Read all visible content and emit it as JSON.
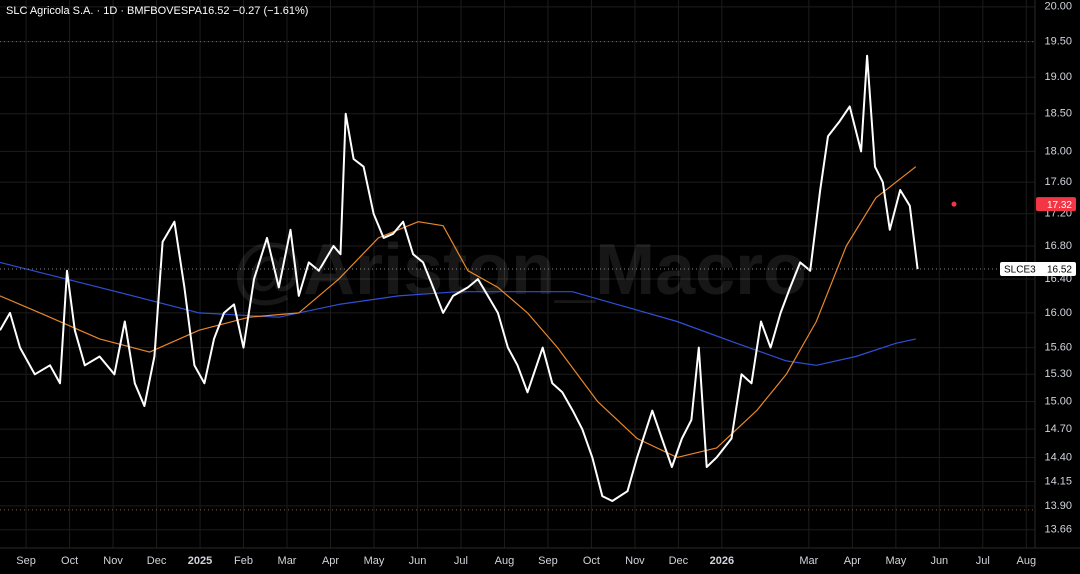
{
  "chart_data": {
    "type": "line",
    "title": "SLC Agricola S.A. · 1D · BMFBOVESPA",
    "quote": "16.52 −0.27 (−1.61%)",
    "watermark": "@Ariston_Macro",
    "log_scale": true,
    "grid": true,
    "xlim": [
      -0.6,
      23.2
    ],
    "ylim": [
      13.48,
      20.1
    ],
    "xticks": [
      {
        "value": 0,
        "label": "Sep"
      },
      {
        "value": 1,
        "label": "Oct"
      },
      {
        "value": 2,
        "label": "Nov"
      },
      {
        "value": 3,
        "label": "Dec"
      },
      {
        "value": 4,
        "label": "2025"
      },
      {
        "value": 5,
        "label": "Feb"
      },
      {
        "value": 6,
        "label": "Mar"
      },
      {
        "value": 7,
        "label": "Apr"
      },
      {
        "value": 8,
        "label": "May"
      },
      {
        "value": 9,
        "label": "Jun"
      },
      {
        "value": 10,
        "label": "Jul"
      },
      {
        "value": 11,
        "label": "Aug"
      },
      {
        "value": 12,
        "label": "Sep"
      },
      {
        "value": 13,
        "label": "Oct"
      },
      {
        "value": 14,
        "label": "Nov"
      },
      {
        "value": 15,
        "label": "Dec"
      },
      {
        "value": 16,
        "label": "2026"
      },
      {
        "value": 18,
        "label": "Mar"
      },
      {
        "value": 19,
        "label": "Apr"
      },
      {
        "value": 20,
        "label": "May"
      },
      {
        "value": 21,
        "label": "Jun"
      },
      {
        "value": 22,
        "label": "Jul"
      },
      {
        "value": 23,
        "label": "Aug"
      }
    ],
    "yticks": [
      13.66,
      {
        "value": 13.9,
        "label": "13.90"
      },
      14.15,
      {
        "value": 14.4,
        "label": "14.40"
      },
      {
        "value": 14.7,
        "label": "14.70"
      },
      {
        "value": 15,
        "label": "15.00"
      },
      {
        "value": 15.3,
        "label": "15.30"
      },
      {
        "value": 15.6,
        "label": "15.60"
      },
      {
        "value": 16,
        "label": "16.00"
      },
      {
        "value": 16.4,
        "label": "16.40"
      },
      {
        "value": 16.8,
        "label": "16.80"
      },
      {
        "value": 17.2,
        "label": "17.20"
      },
      {
        "value": 17.6,
        "label": "17.60"
      },
      {
        "value": 18,
        "label": "18.00"
      },
      {
        "value": 18.5,
        "label": "18.50"
      },
      {
        "value": 19,
        "label": "19.00"
      },
      {
        "value": 19.5,
        "label": "19.50"
      },
      {
        "value": 20,
        "label": "20.00"
      }
    ],
    "reference_lines": [
      19.5,
      13.86
    ],
    "last_price": {
      "symbol": "SLCE3",
      "value": 16.52
    },
    "marker": {
      "value": 17.32,
      "color": "#f23645"
    },
    "series": [
      {
        "color": "#ffffff",
        "x": [
          -0.6,
          -0.37,
          -0.14,
          0.2,
          0.55,
          0.78,
          0.94,
          1.12,
          1.35,
          1.69,
          2.03,
          2.27,
          2.5,
          2.72,
          2.95,
          3.14,
          3.41,
          3.64,
          3.87,
          4.1,
          4.32,
          4.55,
          4.78,
          5.0,
          5.24,
          5.54,
          5.81,
          6.08,
          6.27,
          6.5,
          6.73,
          7.07,
          7.23,
          7.35,
          7.53,
          7.76,
          7.99,
          8.22,
          8.44,
          8.67,
          8.9,
          9.13,
          9.36,
          9.59,
          9.82,
          10.16,
          10.39,
          10.62,
          10.85,
          11.08,
          11.3,
          11.53,
          11.88,
          12.1,
          12.33,
          12.57,
          12.79,
          13.02,
          13.25,
          13.48,
          13.83,
          14.05,
          14.4,
          14.62,
          14.85,
          15.08,
          15.3,
          15.47,
          15.65,
          15.88,
          16.22,
          16.45,
          16.68,
          16.9,
          17.12,
          17.35,
          17.57,
          17.8,
          18.03,
          18.26,
          18.44,
          18.71,
          18.94,
          19.2,
          19.34,
          19.52,
          19.7,
          19.86,
          20.1,
          20.32,
          20.5
        ],
        "values": [
          15.8,
          16.0,
          15.6,
          15.3,
          15.4,
          15.2,
          16.5,
          15.8,
          15.4,
          15.5,
          15.3,
          15.9,
          15.2,
          14.95,
          15.5,
          16.85,
          17.1,
          16.3,
          15.4,
          15.2,
          15.7,
          16.0,
          16.1,
          15.6,
          16.4,
          16.9,
          16.3,
          17.0,
          16.2,
          16.6,
          16.5,
          16.8,
          16.7,
          18.5,
          17.9,
          17.8,
          17.2,
          16.9,
          16.95,
          17.1,
          16.7,
          16.6,
          16.3,
          16.0,
          16.2,
          16.3,
          16.4,
          16.2,
          16.0,
          15.6,
          15.4,
          15.1,
          15.6,
          15.2,
          15.1,
          14.9,
          14.7,
          14.4,
          14.0,
          13.95,
          14.05,
          14.4,
          14.9,
          14.6,
          14.3,
          14.6,
          14.8,
          15.6,
          14.3,
          14.4,
          14.6,
          15.3,
          15.2,
          15.9,
          15.6,
          16.0,
          16.3,
          16.6,
          16.5,
          17.5,
          18.2,
          18.4,
          18.6,
          18.0,
          19.3,
          17.8,
          17.6,
          17.0,
          17.5,
          17.3,
          16.52
        ]
      },
      {
        "color": "#e8872a",
        "x": [
          -0.6,
          0.32,
          1.69,
          2.84,
          3.98,
          5.13,
          6.27,
          7.19,
          8.1,
          9.02,
          9.59,
          10.16,
          10.85,
          11.53,
          12.22,
          13.14,
          14.05,
          14.97,
          15.88,
          16.8,
          17.48,
          18.17,
          18.86,
          19.54,
          20.46
        ],
        "values": [
          16.2,
          16.0,
          15.7,
          15.55,
          15.8,
          15.95,
          16.0,
          16.4,
          16.9,
          17.1,
          17.05,
          16.5,
          16.3,
          16.0,
          15.6,
          15.0,
          14.6,
          14.4,
          14.5,
          14.9,
          15.3,
          15.9,
          16.8,
          17.4,
          17.8
        ]
      },
      {
        "color": "#2f4fd6",
        "x": [
          -0.6,
          1.69,
          3.98,
          5.81,
          7.19,
          8.56,
          9.93,
          11.3,
          12.56,
          13.59,
          14.97,
          16.34,
          17.48,
          18.17,
          19.08,
          20.0,
          20.46
        ],
        "values": [
          16.6,
          16.3,
          16.0,
          15.95,
          16.1,
          16.2,
          16.25,
          16.25,
          16.25,
          16.1,
          15.9,
          15.65,
          15.45,
          15.4,
          15.5,
          15.65,
          15.7
        ]
      }
    ]
  }
}
